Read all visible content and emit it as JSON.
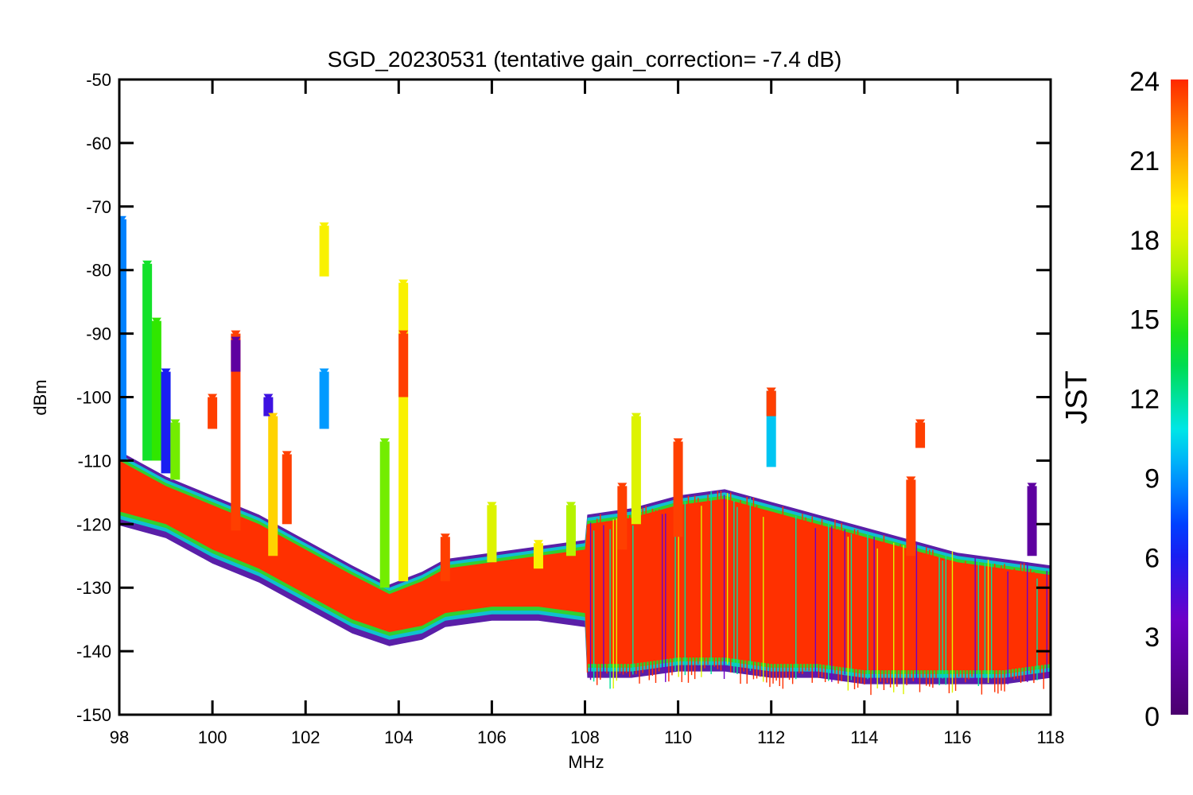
{
  "chart_data": {
    "type": "scatter",
    "title": "SGD_20230531 (tentative gain_correction= -7.4 dB)",
    "xlabel": "MHz",
    "ylabel": "dBm",
    "xlim": [
      98,
      118
    ],
    "ylim": [
      -150,
      -50
    ],
    "x_ticks": [
      "98",
      "100",
      "102",
      "104",
      "106",
      "108",
      "110",
      "112",
      "114",
      "116",
      "118"
    ],
    "y_ticks": [
      "-50",
      "-60",
      "-70",
      "-80",
      "-90",
      "-100",
      "-110",
      "-120",
      "-130",
      "-140",
      "-150"
    ],
    "colorbar": {
      "label": "JST",
      "range": [
        0,
        24
      ],
      "ticks": [
        "0",
        "3",
        "6",
        "9",
        "12",
        "15",
        "18",
        "21",
        "24"
      ],
      "colormap": "rainbow"
    },
    "marker": "down-triangle",
    "noise_floor_dbm": [
      {
        "mhz": 98.0,
        "min": -118,
        "max": -110
      },
      {
        "mhz": 99.0,
        "min": -120,
        "max": -114
      },
      {
        "mhz": 100.0,
        "min": -124,
        "max": -117
      },
      {
        "mhz": 101.0,
        "min": -127,
        "max": -120
      },
      {
        "mhz": 102.0,
        "min": -131,
        "max": -124
      },
      {
        "mhz": 103.0,
        "min": -135,
        "max": -128
      },
      {
        "mhz": 103.8,
        "min": -137,
        "max": -131
      },
      {
        "mhz": 104.5,
        "min": -136,
        "max": -129
      },
      {
        "mhz": 105.0,
        "min": -134,
        "max": -127
      },
      {
        "mhz": 106.0,
        "min": -133,
        "max": -126
      },
      {
        "mhz": 107.0,
        "min": -133,
        "max": -125
      },
      {
        "mhz": 108.0,
        "min": -134,
        "max": -124
      },
      {
        "mhz": 108.05,
        "min": -142,
        "max": -120
      },
      {
        "mhz": 109.0,
        "min": -142,
        "max": -119
      },
      {
        "mhz": 110.0,
        "min": -141,
        "max": -117
      },
      {
        "mhz": 111.0,
        "min": -141,
        "max": -116
      },
      {
        "mhz": 112.0,
        "min": -142,
        "max": -118
      },
      {
        "mhz": 113.0,
        "min": -142,
        "max": -120
      },
      {
        "mhz": 114.0,
        "min": -143,
        "max": -122
      },
      {
        "mhz": 115.0,
        "min": -143,
        "max": -124
      },
      {
        "mhz": 116.0,
        "min": -143,
        "max": -126
      },
      {
        "mhz": 117.0,
        "min": -143,
        "max": -127
      },
      {
        "mhz": 118.0,
        "min": -142,
        "max": -128
      }
    ],
    "series": [
      {
        "mhz": 98.05,
        "top": -72,
        "bottom": -110,
        "jst": 8.5
      },
      {
        "mhz": 98.6,
        "top": -79,
        "bottom": -110,
        "jst": 14
      },
      {
        "mhz": 98.8,
        "top": -88,
        "bottom": -110,
        "jst": 15
      },
      {
        "mhz": 99.0,
        "top": -96,
        "bottom": -112,
        "jst": 6
      },
      {
        "mhz": 99.2,
        "top": -104,
        "bottom": -113,
        "jst": 16
      },
      {
        "mhz": 100.0,
        "top": -100,
        "bottom": -105,
        "jst": 23.5
      },
      {
        "mhz": 100.5,
        "top": -90,
        "bottom": -121,
        "jst": 23.5
      },
      {
        "mhz": 100.5,
        "top": -91,
        "bottom": -96,
        "jst": 2
      },
      {
        "mhz": 101.2,
        "top": -100,
        "bottom": -103,
        "jst": 5
      },
      {
        "mhz": 101.3,
        "top": -103,
        "bottom": -125,
        "jst": 20
      },
      {
        "mhz": 101.6,
        "top": -109,
        "bottom": -120,
        "jst": 23.5
      },
      {
        "mhz": 102.4,
        "top": -73,
        "bottom": -81,
        "jst": 19
      },
      {
        "mhz": 102.4,
        "top": -96,
        "bottom": -105,
        "jst": 9
      },
      {
        "mhz": 103.7,
        "top": -107,
        "bottom": -130,
        "jst": 16
      },
      {
        "mhz": 104.1,
        "top": -82,
        "bottom": -129,
        "jst": 19
      },
      {
        "mhz": 104.1,
        "top": -90,
        "bottom": -100,
        "jst": 23.5
      },
      {
        "mhz": 105.0,
        "top": -122,
        "bottom": -129,
        "jst": 23.5
      },
      {
        "mhz": 106.0,
        "top": -117,
        "bottom": -126,
        "jst": 18
      },
      {
        "mhz": 107.0,
        "top": -123,
        "bottom": -127,
        "jst": 19
      },
      {
        "mhz": 107.7,
        "top": -117,
        "bottom": -125,
        "jst": 17
      },
      {
        "mhz": 108.8,
        "top": -114,
        "bottom": -124,
        "jst": 23.5
      },
      {
        "mhz": 109.1,
        "top": -103,
        "bottom": -120,
        "jst": 18
      },
      {
        "mhz": 110.0,
        "top": -107,
        "bottom": -122,
        "jst": 23.5
      },
      {
        "mhz": 112.0,
        "top": -99,
        "bottom": -111,
        "jst": 10
      },
      {
        "mhz": 112.0,
        "top": -99,
        "bottom": -103,
        "jst": 23.5
      },
      {
        "mhz": 115.0,
        "top": -113,
        "bottom": -125,
        "jst": 23.5
      },
      {
        "mhz": 115.2,
        "top": -104,
        "bottom": -108,
        "jst": 23.5
      },
      {
        "mhz": 117.6,
        "top": -114,
        "bottom": -125,
        "jst": 2
      }
    ]
  }
}
